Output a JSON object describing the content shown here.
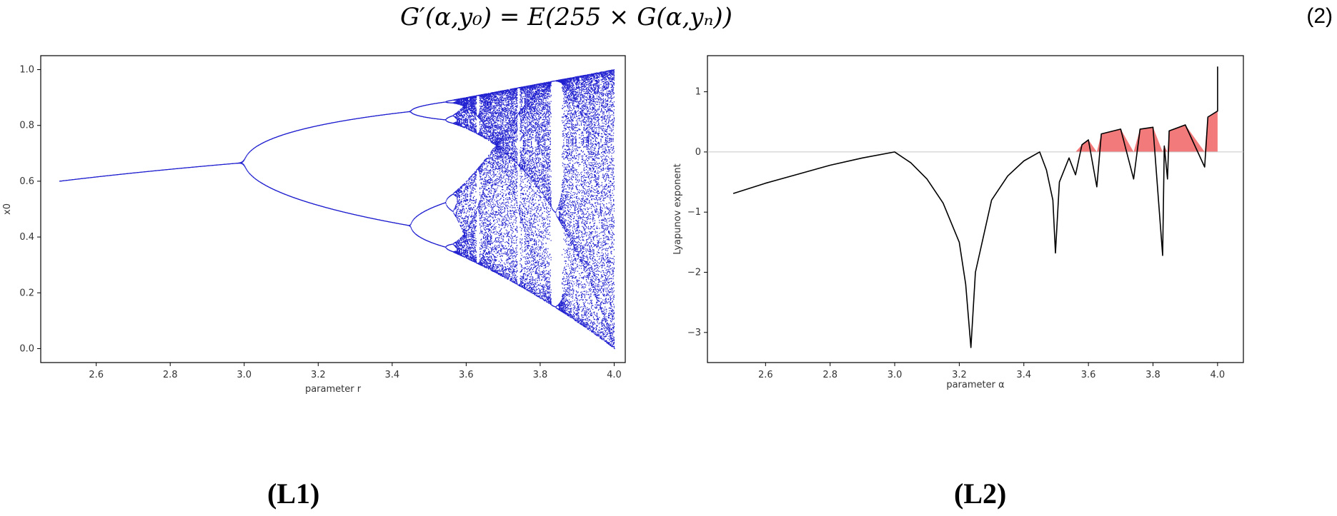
{
  "equation": {
    "text": "G′(α,y₀) = E(255 × G(α,yₙ))",
    "number": "(2)"
  },
  "captions": {
    "left": "(L1)",
    "right": "(L2)"
  },
  "chart_data": [
    {
      "type": "scatter",
      "name": "Bifurcation diagram",
      "xlabel": "parameter r",
      "ylabel": "x0",
      "xlim": [
        2.45,
        4.03
      ],
      "ylim": [
        -0.05,
        1.05
      ],
      "xticks": [
        2.6,
        2.8,
        3.0,
        3.2,
        3.4,
        3.6,
        3.8,
        4.0
      ],
      "xtick_labels": [
        "2.6",
        "2.8",
        "3.0",
        "3.2",
        "3.4",
        "3.6",
        "3.8",
        "4.0"
      ],
      "yticks": [
        0.0,
        0.2,
        0.4,
        0.6,
        0.8,
        1.0
      ],
      "ytick_labels": [
        "0.0",
        "0.2",
        "0.4",
        "0.6",
        "0.8",
        "1.0"
      ],
      "r_range": [
        2.5,
        4.0
      ],
      "map": "logistic",
      "color": "#1f1fd0",
      "grid": false
    },
    {
      "type": "line",
      "name": "Lyapunov exponent",
      "xlabel": "parameter α",
      "ylabel": "Lyapunov exponent",
      "xlim": [
        2.42,
        4.08
      ],
      "ylim": [
        -3.5,
        1.6
      ],
      "xticks": [
        2.6,
        2.8,
        3.0,
        3.2,
        3.4,
        3.6,
        3.8,
        4.0
      ],
      "xtick_labels": [
        "2.6",
        "2.8",
        "3.0",
        "3.2",
        "3.4",
        "3.6",
        "3.8",
        "4.0"
      ],
      "yticks": [
        -3,
        -2,
        -1,
        0,
        1
      ],
      "ytick_labels": [
        "−3",
        "−2",
        "−1",
        "0",
        "1"
      ],
      "x": [
        2.5,
        2.6,
        2.7,
        2.8,
        2.9,
        3.0,
        3.05,
        3.1,
        3.15,
        3.2,
        3.22,
        3.236,
        3.25,
        3.3,
        3.35,
        3.4,
        3.449,
        3.47,
        3.49,
        3.498,
        3.51,
        3.54,
        3.56,
        3.58,
        3.6,
        3.626,
        3.64,
        3.7,
        3.74,
        3.76,
        3.8,
        3.83,
        3.835,
        3.845,
        3.85,
        3.9,
        3.96,
        3.97,
        4.0,
        4.0
      ],
      "y": [
        -0.69,
        -0.52,
        -0.37,
        -0.22,
        -0.1,
        0.0,
        -0.18,
        -0.45,
        -0.85,
        -1.5,
        -2.2,
        -3.25,
        -2.0,
        -0.8,
        -0.4,
        -0.15,
        0.0,
        -0.3,
        -0.8,
        -1.68,
        -0.5,
        -0.1,
        -0.38,
        0.12,
        0.2,
        -0.58,
        0.3,
        0.38,
        -0.45,
        0.38,
        0.41,
        -1.72,
        0.1,
        -0.45,
        0.35,
        0.45,
        -0.25,
        0.58,
        0.68,
        1.42
      ],
      "fill_positive_color": "#f37a7a",
      "line_color": "#000000",
      "zero_line": true,
      "grid": false
    }
  ]
}
